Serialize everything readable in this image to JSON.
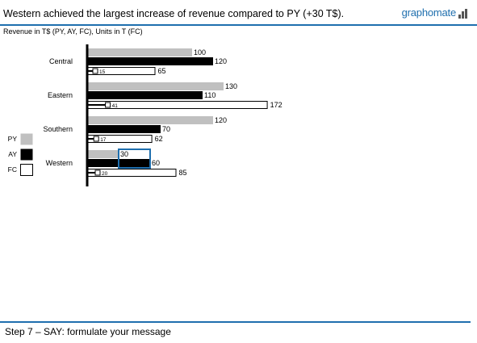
{
  "header": {
    "title": "Western achieved the largest increase of revenue compared to PY (+30 T$).",
    "logo": "graphomate"
  },
  "subtitle": "Revenue in T$ (PY, AY, FC), Units in T (FC)",
  "footer": "Step 7 – SAY: formulate your message",
  "colors": {
    "py": "#c0c0c0",
    "ay": "#000000",
    "fc": "#ffffff",
    "accent": "#1f6fae",
    "highlight": "#1f6fae"
  },
  "chart_data": {
    "type": "bar",
    "orientation": "horizontal",
    "categories": [
      "Central",
      "Eastern",
      "Southern",
      "Western"
    ],
    "series": [
      {
        "name": "PY",
        "values": [
          100,
          130,
          120,
          30
        ]
      },
      {
        "name": "AY",
        "values": [
          120,
          110,
          70,
          60
        ]
      },
      {
        "name": "FC",
        "values": [
          65,
          172,
          62,
          85
        ]
      }
    ],
    "units": [
      15,
      41,
      17,
      20
    ],
    "legend": [
      "PY",
      "AY",
      "FC"
    ],
    "legend_position": "left",
    "highlight_category": "Western"
  }
}
